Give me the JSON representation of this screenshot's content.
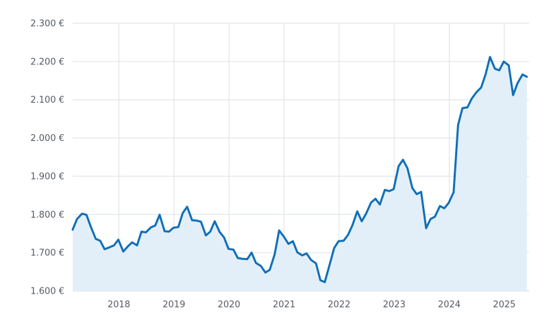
{
  "chart_data": {
    "type": "area",
    "title": "",
    "xlabel": "",
    "ylabel": "",
    "y_ticks": [
      "1.600 €",
      "1.700 €",
      "1.800 €",
      "1.900 €",
      "2.000 €",
      "2.100 €",
      "2.200 €",
      "2.300 €"
    ],
    "y_tick_values": [
      1600,
      1700,
      1800,
      1900,
      2000,
      2100,
      2200,
      2300
    ],
    "x_ticks": [
      "2018",
      "2019",
      "2020",
      "2021",
      "2022",
      "2023",
      "2024",
      "2025"
    ],
    "x_tick_values": [
      2018,
      2019,
      2020,
      2021,
      2022,
      2023,
      2024,
      2025
    ],
    "xlim": [
      2017.16,
      2025.45
    ],
    "ylim": [
      1600,
      2300
    ],
    "grid": true,
    "line_color": "#0f6fb8",
    "fill_color": "#e3eff8",
    "series": [
      {
        "x": [
          2017.16,
          2017.24,
          2017.33,
          2017.41,
          2017.49,
          2017.58,
          2017.66,
          2017.74,
          2017.83,
          2017.91,
          2017.99,
          2018.08,
          2018.16,
          2018.24,
          2018.33,
          2018.41,
          2018.49,
          2018.58,
          2018.66,
          2018.74,
          2018.83,
          2018.91,
          2018.99,
          2019.08,
          2019.16,
          2019.24,
          2019.33,
          2019.41,
          2019.49,
          2019.58,
          2019.66,
          2019.74,
          2019.83,
          2019.91,
          2019.99,
          2020.08,
          2020.16,
          2020.24,
          2020.33,
          2020.41,
          2020.49,
          2020.58,
          2020.66,
          2020.74,
          2020.83,
          2020.91,
          2020.99,
          2021.08,
          2021.16,
          2021.24,
          2021.33,
          2021.41,
          2021.49,
          2021.58,
          2021.66,
          2021.74,
          2021.83,
          2021.91,
          2021.99,
          2022.08,
          2022.16,
          2022.24,
          2022.33,
          2022.41,
          2022.49,
          2022.58,
          2022.66,
          2022.74,
          2022.83,
          2022.91,
          2022.99,
          2023.08,
          2023.16,
          2023.24,
          2023.33,
          2023.41,
          2023.49,
          2023.58,
          2023.66,
          2023.74,
          2023.83,
          2023.91,
          2023.99,
          2024.08,
          2024.16,
          2024.24,
          2024.33,
          2024.41,
          2024.49,
          2024.58,
          2024.66,
          2024.74,
          2024.83,
          2024.91,
          2024.99,
          2025.08,
          2025.16,
          2025.24,
          2025.33,
          2025.41
        ],
        "y": [
          1760,
          1788,
          1802,
          1799,
          1768,
          1736,
          1731,
          1709,
          1714,
          1719,
          1734,
          1703,
          1716,
          1727,
          1719,
          1755,
          1753,
          1766,
          1771,
          1799,
          1756,
          1755,
          1765,
          1767,
          1804,
          1820,
          1785,
          1784,
          1781,
          1745,
          1755,
          1782,
          1754,
          1740,
          1710,
          1708,
          1686,
          1684,
          1683,
          1700,
          1673,
          1665,
          1648,
          1655,
          1696,
          1758,
          1743,
          1723,
          1730,
          1701,
          1693,
          1698,
          1681,
          1672,
          1628,
          1623,
          1670,
          1712,
          1730,
          1731,
          1746,
          1771,
          1808,
          1782,
          1802,
          1831,
          1841,
          1826,
          1864,
          1861,
          1866,
          1926,
          1943,
          1921,
          1869,
          1853,
          1859,
          1764,
          1788,
          1794,
          1822,
          1816,
          1830,
          1858,
          2034,
          2078,
          2080,
          2103,
          2119,
          2132,
          2166,
          2212,
          2181,
          2177,
          2200,
          2190,
          2112,
          2143,
          2166,
          2160
        ]
      }
    ]
  }
}
